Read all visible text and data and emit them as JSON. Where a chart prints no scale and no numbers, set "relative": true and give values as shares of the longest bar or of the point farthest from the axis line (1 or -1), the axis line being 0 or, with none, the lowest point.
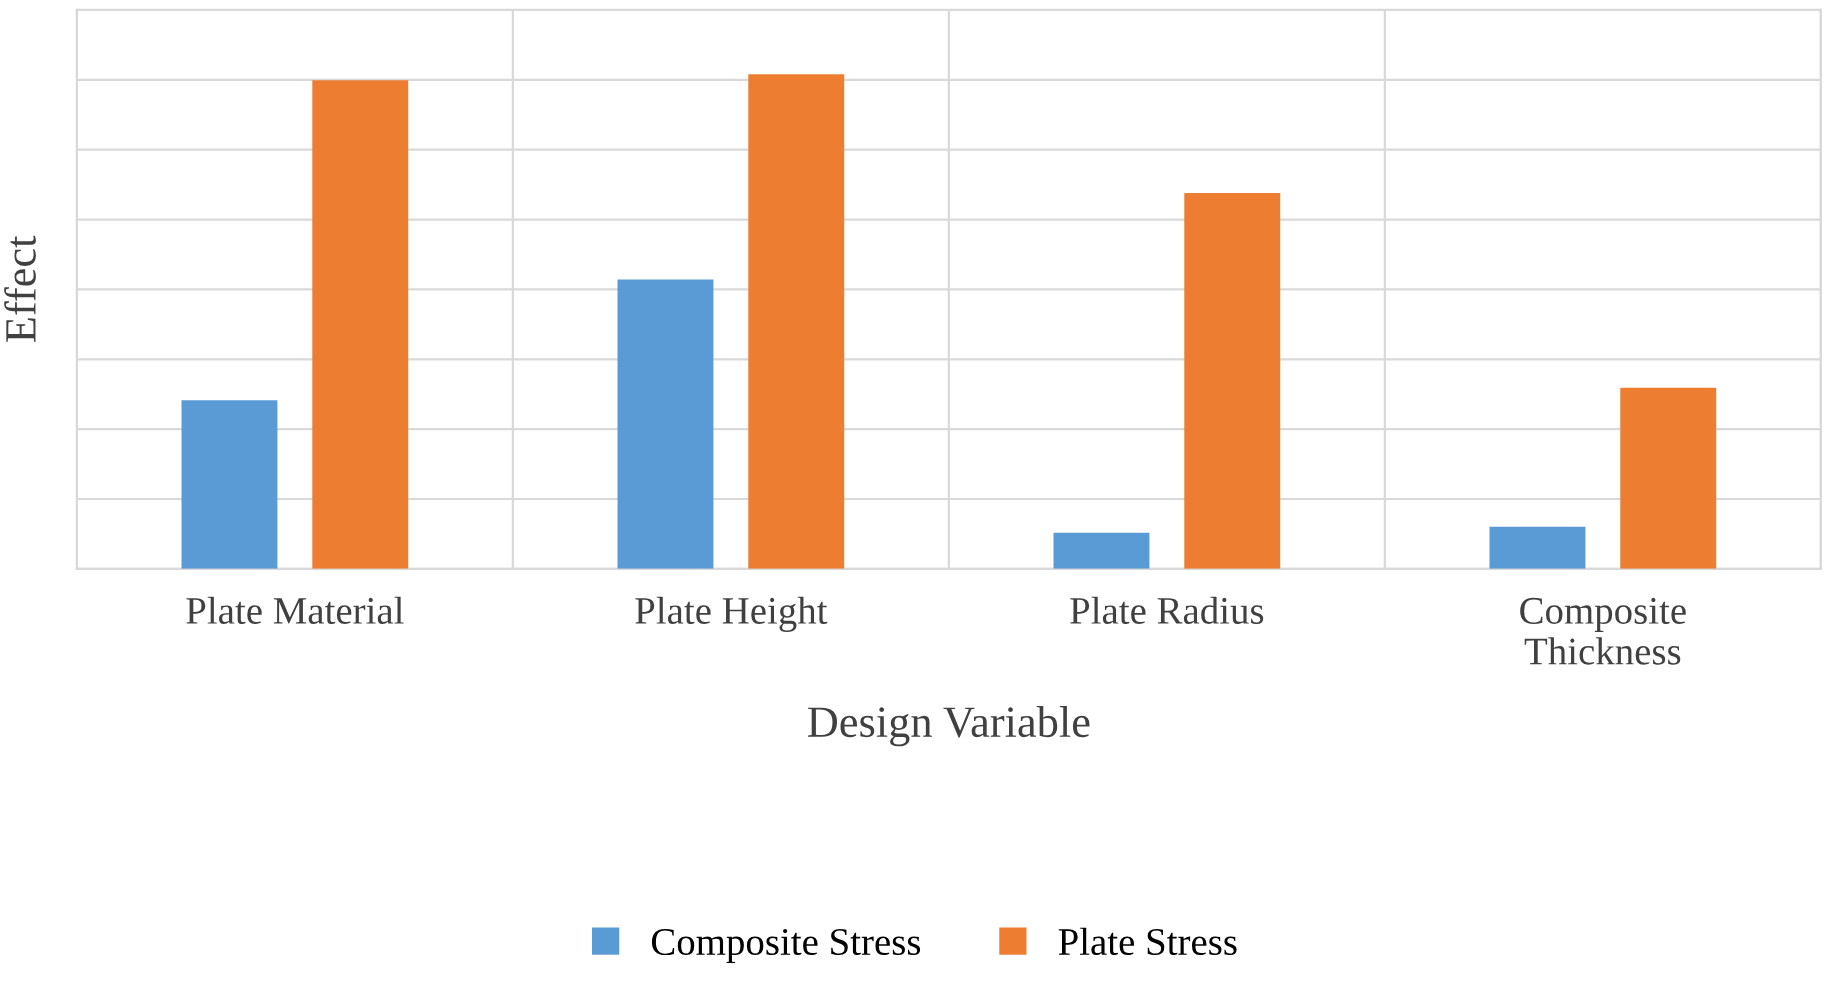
{
  "chart_data": {
    "type": "bar",
    "relative": true,
    "xlabel": "Design Variable",
    "ylabel": "Effect",
    "categories": [
      "Plate Material",
      "Plate Height",
      "Plate Radius",
      "Composite\nThickness"
    ],
    "series": [
      {
        "name": "Composite Stress",
        "color": "#5b9bd5",
        "values": [
          0.341,
          0.585,
          0.073,
          0.085
        ]
      },
      {
        "name": "Plate Stress",
        "color": "#ed7d31",
        "values": [
          0.988,
          1,
          0.76,
          0.366
        ]
      }
    ],
    "grid": true,
    "legend": "bottom"
  }
}
